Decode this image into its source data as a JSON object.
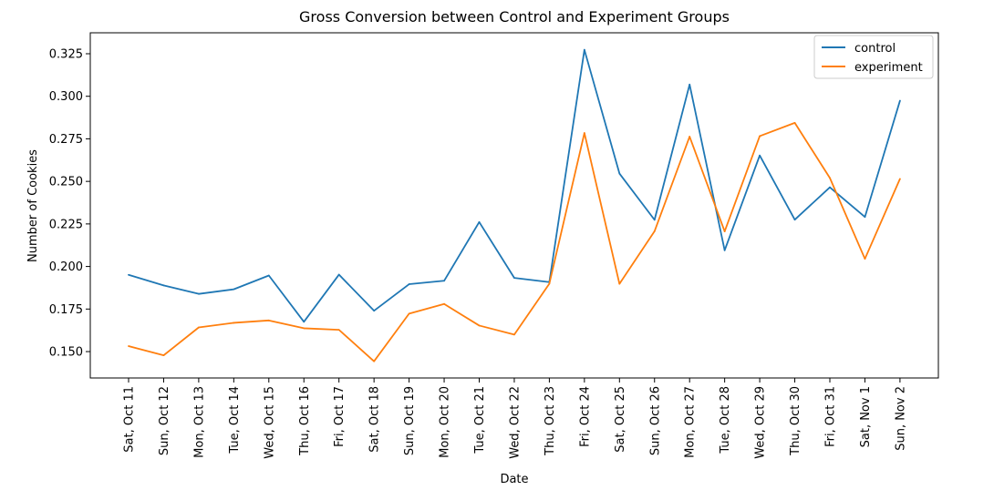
{
  "chart_data": {
    "type": "line",
    "title": "Gross Conversion between Control and Experiment Groups",
    "xlabel": "Date",
    "ylabel": "Number of Cookies",
    "categories": [
      "Sat, Oct 11",
      "Sun, Oct 12",
      "Mon, Oct 13",
      "Tue, Oct 14",
      "Wed, Oct 15",
      "Thu, Oct 16",
      "Fri, Oct 17",
      "Sat, Oct 18",
      "Sun, Oct 19",
      "Mon, Oct 20",
      "Tue, Oct 21",
      "Wed, Oct 22",
      "Thu, Oct 23",
      "Fri, Oct 24",
      "Sat, Oct 25",
      "Sun, Oct 26",
      "Mon, Oct 27",
      "Tue, Oct 28",
      "Wed, Oct 29",
      "Thu, Oct 30",
      "Fri, Oct 31",
      "Sat, Nov 1",
      "Sun, Nov 2"
    ],
    "series": [
      {
        "name": "control",
        "color": "#1f77b4",
        "values": [
          0.1951,
          0.1889,
          0.1839,
          0.1866,
          0.1947,
          0.1675,
          0.1952,
          0.174,
          0.1896,
          0.1916,
          0.2261,
          0.1933,
          0.1908,
          0.3273,
          0.2546,
          0.2274,
          0.3069,
          0.2095,
          0.2652,
          0.2275,
          0.2465,
          0.2291,
          0.2974
        ]
      },
      {
        "name": "experiment",
        "color": "#ff7f0e",
        "values": [
          0.1532,
          0.1478,
          0.1642,
          0.1669,
          0.1683,
          0.1637,
          0.1628,
          0.1443,
          0.1723,
          0.178,
          0.1653,
          0.16,
          0.1899,
          0.2784,
          0.1898,
          0.2207,
          0.2763,
          0.2206,
          0.2766,
          0.2844,
          0.252,
          0.2045,
          0.2515
        ]
      }
    ],
    "yticks": [
      "0.150",
      "0.175",
      "0.200",
      "0.225",
      "0.250",
      "0.275",
      "0.300",
      "0.325"
    ],
    "ylim": [
      0.1345,
      0.3373
    ],
    "grid": false,
    "legend_position": "top-right"
  }
}
